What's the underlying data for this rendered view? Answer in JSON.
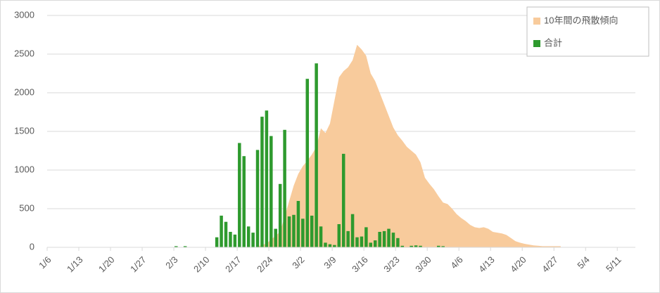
{
  "chart_data": {
    "type": "bar",
    "categories": [
      "1/6",
      null,
      null,
      null,
      null,
      null,
      null,
      "1/13",
      null,
      null,
      null,
      null,
      null,
      null,
      "1/20",
      null,
      null,
      null,
      null,
      null,
      null,
      "1/27",
      null,
      null,
      null,
      null,
      null,
      null,
      "2/3",
      null,
      null,
      null,
      null,
      null,
      null,
      "2/10",
      null,
      null,
      null,
      null,
      null,
      null,
      "2/17",
      null,
      null,
      null,
      null,
      null,
      null,
      "2/24",
      null,
      null,
      null,
      null,
      null,
      null,
      "3/2",
      null,
      null,
      null,
      null,
      null,
      null,
      "3/9",
      null,
      null,
      null,
      null,
      null,
      null,
      "3/16",
      null,
      null,
      null,
      null,
      null,
      null,
      "3/23",
      null,
      null,
      null,
      null,
      null,
      null,
      "3/30",
      null,
      null,
      null,
      null,
      null,
      null,
      "4/6",
      null,
      null,
      null,
      null,
      null,
      null,
      "4/13",
      null,
      null,
      null,
      null,
      null,
      null,
      "4/20",
      null,
      null,
      null,
      null,
      null,
      null,
      "4/27",
      null,
      null,
      null,
      null,
      null,
      null,
      "5/4",
      null,
      null,
      null,
      null,
      null,
      null,
      "5/11",
      null,
      null,
      null
    ],
    "series": [
      {
        "name": "10年間の飛散傾向",
        "type": "area",
        "color": "#f8cb9c",
        "values": [
          null,
          null,
          null,
          null,
          null,
          null,
          null,
          null,
          null,
          null,
          null,
          null,
          null,
          null,
          null,
          null,
          null,
          null,
          null,
          null,
          null,
          null,
          null,
          null,
          null,
          null,
          null,
          null,
          null,
          null,
          null,
          null,
          null,
          null,
          null,
          null,
          null,
          null,
          null,
          null,
          null,
          null,
          null,
          null,
          null,
          null,
          10,
          30,
          50,
          100,
          150,
          200,
          400,
          600,
          800,
          950,
          1050,
          1120,
          1200,
          1300,
          1540,
          1480,
          1600,
          1900,
          2200,
          2280,
          2330,
          2420,
          2620,
          2560,
          2480,
          2250,
          2150,
          2000,
          1850,
          1700,
          1550,
          1450,
          1380,
          1300,
          1250,
          1200,
          1100,
          900,
          820,
          750,
          660,
          580,
          560,
          500,
          430,
          380,
          340,
          290,
          260,
          250,
          260,
          240,
          200,
          190,
          180,
          160,
          120,
          80,
          60,
          45,
          35,
          25,
          20,
          15,
          15,
          15,
          15,
          15,
          null,
          null,
          null,
          null,
          null,
          null,
          null,
          null,
          null,
          null,
          null,
          null,
          null,
          null,
          null,
          null
        ]
      },
      {
        "name": "合計",
        "type": "bar",
        "color": "#2e9a2e",
        "values": [
          0,
          0,
          0,
          0,
          0,
          0,
          0,
          0,
          0,
          0,
          0,
          0,
          0,
          0,
          0,
          0,
          0,
          0,
          0,
          0,
          0,
          0,
          0,
          0,
          0,
          0,
          0,
          0,
          15,
          0,
          15,
          0,
          0,
          0,
          0,
          0,
          0,
          130,
          410,
          330,
          200,
          165,
          1350,
          1180,
          270,
          190,
          1260,
          1690,
          1770,
          1440,
          240,
          820,
          1520,
          400,
          420,
          600,
          370,
          2180,
          410,
          2380,
          270,
          60,
          40,
          30,
          300,
          1210,
          210,
          430,
          130,
          140,
          260,
          60,
          90,
          200,
          210,
          240,
          190,
          120,
          20,
          0,
          20,
          25,
          20,
          0,
          0,
          0,
          20,
          15,
          0,
          0,
          0,
          0,
          0,
          0,
          0,
          0,
          0,
          0,
          0,
          0,
          0,
          0,
          0,
          0,
          0,
          0,
          0,
          0,
          0,
          0,
          0,
          0,
          0,
          0,
          0,
          0,
          0,
          0,
          0,
          0,
          0,
          0,
          0,
          0,
          0,
          0,
          0,
          0,
          0,
          0
        ]
      }
    ],
    "ylim": [
      0,
      3000
    ],
    "yticks": [
      0,
      500,
      1000,
      1500,
      2000,
      2500,
      3000
    ],
    "grid": true,
    "legend": "top-right"
  }
}
